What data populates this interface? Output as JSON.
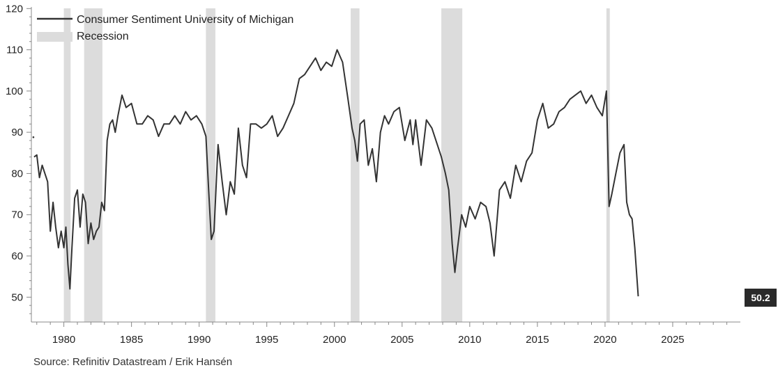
{
  "chart_data": {
    "type": "line",
    "xlim": [
      1977.6,
      2030.0
    ],
    "ylim": [
      45,
      120
    ],
    "yticks": [
      50,
      60,
      70,
      80,
      90,
      100,
      110,
      120
    ],
    "xticks": [
      1980,
      1985,
      1990,
      1995,
      2000,
      2005,
      2010,
      2015,
      2020,
      2025
    ],
    "ytick_labels": [
      "50",
      "60",
      "70",
      "80",
      "90",
      "100",
      "110",
      "120"
    ],
    "xtick_labels": [
      "1980",
      "1985",
      "1990",
      "1995",
      "2000",
      "2005",
      "2010",
      "2015",
      "2020",
      "2025"
    ],
    "grid": false,
    "legend_position": "top-left",
    "legend": [
      "Consumer Sentiment University of Michigan",
      "Recession"
    ],
    "last_value_label": "50.2",
    "series": [
      {
        "name": "Consumer Sentiment University of Michigan",
        "color": "#333333",
        "x": [
          1977.8,
          1978.0,
          1978.2,
          1978.4,
          1978.6,
          1978.8,
          1979.0,
          1979.2,
          1979.4,
          1979.6,
          1979.8,
          1980.0,
          1980.15,
          1980.3,
          1980.45,
          1980.6,
          1980.8,
          1981.0,
          1981.2,
          1981.4,
          1981.6,
          1981.8,
          1982.0,
          1982.2,
          1982.4,
          1982.6,
          1982.8,
          1983.0,
          1983.2,
          1983.4,
          1983.6,
          1983.8,
          1984.0,
          1984.3,
          1984.6,
          1985.0,
          1985.4,
          1985.8,
          1986.2,
          1986.6,
          1987.0,
          1987.4,
          1987.8,
          1988.2,
          1988.6,
          1989.0,
          1989.4,
          1989.8,
          1990.2,
          1990.5,
          1990.7,
          1990.9,
          1991.1,
          1991.4,
          1991.7,
          1992.0,
          1992.3,
          1992.6,
          1992.9,
          1993.2,
          1993.5,
          1993.8,
          1994.2,
          1994.6,
          1995.0,
          1995.4,
          1995.8,
          1996.2,
          1996.6,
          1997.0,
          1997.4,
          1997.8,
          1998.2,
          1998.6,
          1999.0,
          1999.4,
          1999.8,
          2000.2,
          2000.6,
          2001.0,
          2001.3,
          2001.5,
          2001.7,
          2001.9,
          2002.2,
          2002.5,
          2002.8,
          2003.1,
          2003.4,
          2003.7,
          2004.0,
          2004.4,
          2004.8,
          2005.2,
          2005.6,
          2005.8,
          2006.0,
          2006.4,
          2006.8,
          2007.2,
          2007.6,
          2007.9,
          2008.2,
          2008.45,
          2008.7,
          2008.9,
          2009.1,
          2009.4,
          2009.7,
          2010.0,
          2010.4,
          2010.8,
          2011.2,
          2011.5,
          2011.8,
          2012.2,
          2012.6,
          2013.0,
          2013.4,
          2013.8,
          2014.2,
          2014.6,
          2015.0,
          2015.4,
          2015.8,
          2016.2,
          2016.6,
          2017.0,
          2017.4,
          2017.8,
          2018.2,
          2018.6,
          2019.0,
          2019.4,
          2019.8,
          2020.1,
          2020.3,
          2020.5,
          2020.8,
          2021.1,
          2021.4,
          2021.6,
          2021.8,
          2022.0,
          2022.2,
          2022.45
        ],
        "y": [
          84,
          84.5,
          79,
          82,
          80,
          78,
          66,
          73,
          67,
          62,
          66,
          62,
          67,
          58,
          52,
          62,
          74,
          76,
          67,
          75,
          73,
          63,
          68,
          64,
          66,
          67,
          73,
          71,
          88,
          92,
          93,
          90,
          94,
          99,
          96,
          97,
          92,
          92,
          94,
          93,
          89,
          92,
          92,
          94,
          92,
          95,
          93,
          94,
          92,
          89,
          76,
          64,
          66,
          87,
          78,
          70,
          78,
          75,
          91,
          82,
          79,
          92,
          92,
          91,
          92,
          94,
          89,
          91,
          94,
          97,
          103,
          104,
          106,
          108,
          105,
          107,
          106,
          110,
          107,
          98,
          91,
          88,
          83,
          92,
          93,
          82,
          86,
          78,
          90,
          94,
          92,
          95,
          96,
          88,
          93,
          87,
          93,
          82,
          93,
          91,
          87,
          84,
          80,
          76,
          63,
          56,
          62,
          70,
          67,
          72,
          69,
          73,
          72,
          68,
          60,
          76,
          78,
          74,
          82,
          78,
          83,
          85,
          93,
          97,
          91,
          92,
          95,
          96,
          98,
          99,
          100,
          97,
          99,
          96,
          94,
          100,
          72,
          75,
          80,
          85,
          87,
          73,
          70,
          69,
          62,
          50.2
        ]
      }
    ],
    "recessions": [
      [
        1980.0,
        1980.5
      ],
      [
        1981.5,
        1982.85
      ],
      [
        1990.5,
        1991.2
      ],
      [
        2001.2,
        2001.85
      ],
      [
        2007.9,
        2009.45
      ],
      [
        2020.1,
        2020.35
      ]
    ],
    "source": "Source: Refinitiv Datastream / Erik Hansén",
    "colors": {
      "line": "#333333",
      "recession": "#dcdcdc",
      "axis": "#888888",
      "last_label_bg": "#2a2a2a"
    }
  }
}
